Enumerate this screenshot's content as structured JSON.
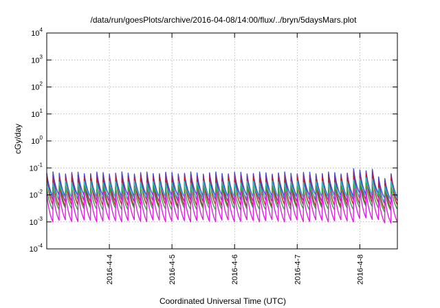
{
  "chart_data": {
    "type": "line",
    "title": "/data/run/goesPlots/archive/2016-04-08/14:00/flux/../bryn/5daysMars.plot",
    "xlabel": "Coordinated Universal Time (UTC)",
    "ylabel": "cGy/day",
    "y_scale": "log",
    "ylim": [
      0.0001,
      10000
    ],
    "xlim_days": [
      3.0,
      8.6
    ],
    "grid": true,
    "y_ticks": [
      {
        "value": 0.0001,
        "exp": "-4"
      },
      {
        "value": 0.001,
        "exp": "-3"
      },
      {
        "value": 0.01,
        "exp": "-2"
      },
      {
        "value": 0.1,
        "exp": "-1"
      },
      {
        "value": 1,
        "exp": "0"
      },
      {
        "value": 10,
        "exp": "1"
      },
      {
        "value": 100,
        "exp": "2"
      },
      {
        "value": 1000,
        "exp": "3"
      },
      {
        "value": 10000,
        "exp": "4"
      }
    ],
    "x_ticks": [
      {
        "day": 4,
        "label": "2016-4-4"
      },
      {
        "day": 5,
        "label": "2016-4-5"
      },
      {
        "day": 6,
        "label": "2016-4-6"
      },
      {
        "day": 7,
        "label": "2016-4-7"
      },
      {
        "day": 8,
        "label": "2016-4-8"
      }
    ],
    "sawtooth_period_days": 0.1,
    "series": [
      {
        "color": "#3050e0",
        "peak": 0.065,
        "trough": 0.009
      },
      {
        "color": "#8a2b8a",
        "peak": 0.055,
        "trough": 0.006
      },
      {
        "color": "#c02020",
        "peak": 0.04,
        "trough": 0.004
      },
      {
        "color": "#20c0c0",
        "peak": 0.03,
        "trough": 0.008
      },
      {
        "color": "#30a040",
        "peak": 0.02,
        "trough": 0.003
      },
      {
        "color": "#e020e0",
        "peak": 0.012,
        "trough": 0.0011
      }
    ]
  }
}
